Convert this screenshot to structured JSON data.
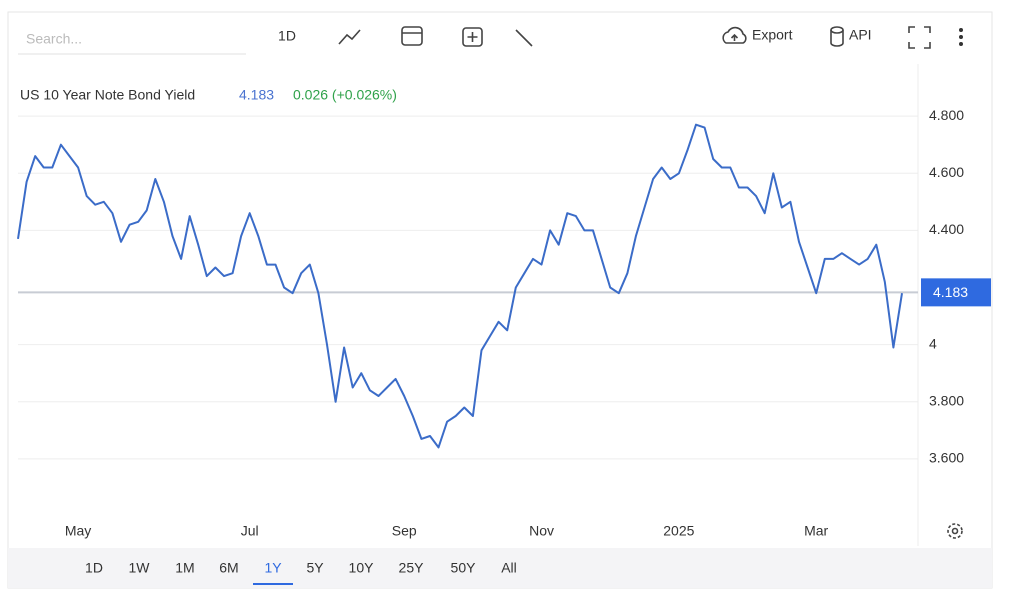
{
  "toolbar": {
    "search_placeholder": "Search...",
    "interval": "1D",
    "export": "Export",
    "api": "API"
  },
  "chart_data": {
    "type": "line",
    "title": "US 10 Year Note Bond Yield",
    "last_value": 4.183,
    "change": "0.026 (+0.026%)",
    "categories": [
      null,
      null,
      null,
      null,
      null,
      null,
      null,
      "May",
      null,
      null,
      null,
      null,
      null,
      null,
      null,
      null,
      null,
      null,
      null,
      null,
      null,
      null,
      null,
      null,
      null,
      null,
      null,
      "Jul",
      null,
      null,
      null,
      null,
      null,
      null,
      null,
      null,
      null,
      null,
      null,
      null,
      null,
      null,
      null,
      null,
      null,
      "Sep",
      null,
      null,
      null,
      null,
      null,
      null,
      null,
      null,
      null,
      null,
      null,
      null,
      null,
      null,
      null,
      "Nov",
      null,
      null,
      null,
      null,
      null,
      null,
      null,
      null,
      null,
      null,
      null,
      null,
      null,
      null,
      null,
      "2025",
      null,
      null,
      null,
      null,
      null,
      null,
      null,
      null,
      null,
      null,
      null,
      null,
      null,
      null,
      null,
      "Mar",
      null,
      null,
      null,
      null,
      null,
      null,
      null,
      null,
      null,
      null
    ],
    "series": [
      {
        "name": "US 10 Year Note Bond Yield",
        "color": "#3b6cc8",
        "values": [
          4.37,
          4.57,
          4.66,
          4.62,
          4.62,
          4.7,
          4.66,
          4.62,
          4.52,
          4.49,
          4.5,
          4.46,
          4.36,
          4.42,
          4.43,
          4.47,
          4.58,
          4.5,
          4.38,
          4.3,
          4.45,
          4.35,
          4.24,
          4.27,
          4.24,
          4.25,
          4.38,
          4.46,
          4.38,
          4.28,
          4.28,
          4.2,
          4.18,
          4.25,
          4.28,
          4.18,
          4.0,
          3.8,
          3.99,
          3.85,
          3.9,
          3.84,
          3.82,
          3.85,
          3.88,
          3.82,
          3.75,
          3.67,
          3.68,
          3.64,
          3.73,
          3.75,
          3.78,
          3.75,
          3.98,
          4.03,
          4.08,
          4.05,
          4.2,
          4.25,
          4.3,
          4.28,
          4.4,
          4.35,
          4.46,
          4.45,
          4.4,
          4.4,
          4.3,
          4.2,
          4.18,
          4.25,
          4.38,
          4.48,
          4.58,
          4.62,
          4.58,
          4.6,
          4.68,
          4.77,
          4.76,
          4.65,
          4.62,
          4.62,
          4.55,
          4.55,
          4.52,
          4.46,
          4.6,
          4.48,
          4.5,
          4.36,
          4.27,
          4.18,
          4.3,
          4.3,
          4.32,
          4.3,
          4.28,
          4.3,
          4.35,
          4.22,
          3.99,
          4.18
        ]
      }
    ],
    "ylim": [
      3.4,
      5.0
    ],
    "yticks": [
      {
        "value": 3.6,
        "label": "3.600"
      },
      {
        "value": 3.8,
        "label": "3.800"
      },
      4,
      {
        "value": 4.4,
        "label": "4.400"
      },
      {
        "value": 4.6,
        "label": "4.600"
      },
      {
        "value": 4.8,
        "label": "4.800"
      }
    ],
    "grid": true
  },
  "ranges": {
    "options": [
      "1D",
      "1W",
      "1M",
      "6M",
      "1Y",
      "5Y",
      "10Y",
      "25Y",
      "50Y",
      "All"
    ],
    "selected": "1Y"
  }
}
